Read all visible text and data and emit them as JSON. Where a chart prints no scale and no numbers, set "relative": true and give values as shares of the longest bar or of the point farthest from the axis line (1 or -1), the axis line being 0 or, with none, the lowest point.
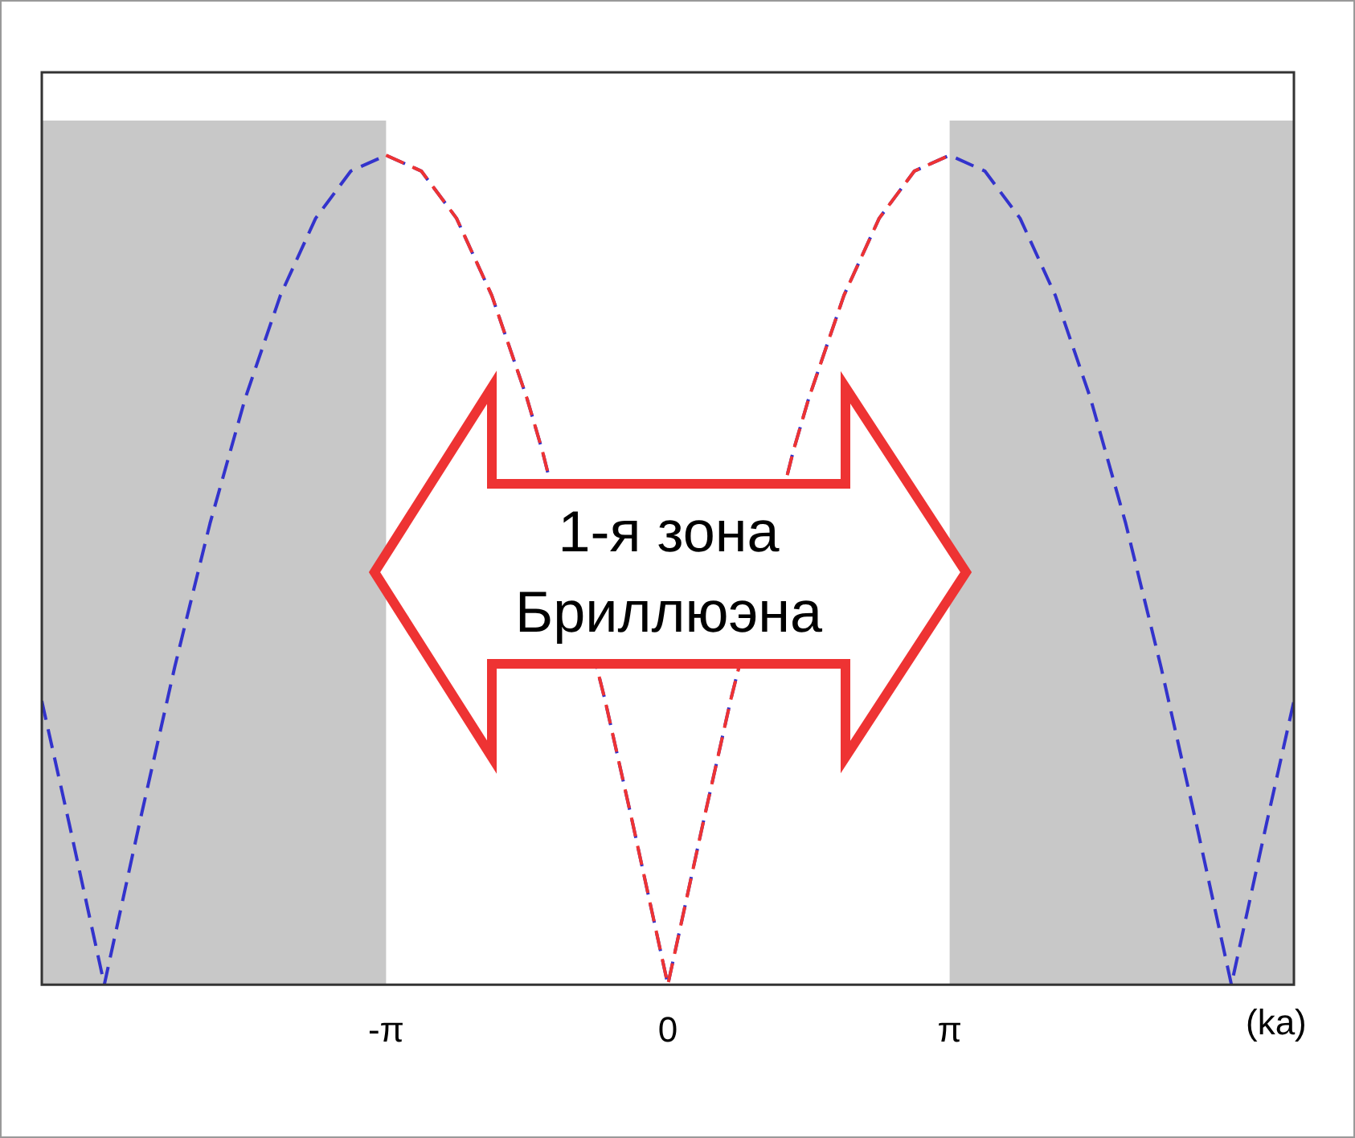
{
  "chart_data": {
    "type": "line",
    "relative": true,
    "xlabel": "(ka)",
    "annotations": [
      "1-я зона Бриллюэна"
    ],
    "xlim": [
      -6.98,
      6.98
    ],
    "xticks": [
      {
        "value": -3.1416,
        "label": "-π"
      },
      0,
      {
        "value": 3.1416,
        "label": "π"
      }
    ],
    "grid": false,
    "legend": false,
    "marker": "none",
    "bands": [
      {
        "axis": "x",
        "from": -6.98,
        "to": -3.1416,
        "color": "#c8c8c8"
      },
      {
        "axis": "x",
        "from": 3.1416,
        "to": 6.98,
        "color": "#c8c8c8"
      }
    ],
    "series": [
      {
        "color": "#3333cc",
        "line_style": "dashed",
        "x": [
          -6.98,
          -6.676,
          -6.283,
          -5.89,
          -5.498,
          -5.105,
          -4.712,
          -4.32,
          -3.927,
          -3.534,
          -3.142,
          -2.749,
          -2.356,
          -1.963,
          -1.571,
          -1.4,
          -0.7,
          -0.393,
          0,
          0.393,
          0.7,
          1.4,
          1.571,
          1.963,
          2.356,
          2.749,
          3.142,
          3.534,
          3.927,
          4.32,
          4.712,
          5.105,
          5.498,
          5.89,
          6.283,
          6.676,
          6.98
        ],
        "values": [
          0.342,
          0.195,
          0,
          0.195,
          0.383,
          0.556,
          0.707,
          0.831,
          0.924,
          0.981,
          1,
          0.981,
          0.924,
          0.831,
          0.707,
          0.644,
          0.343,
          0.195,
          0,
          0.195,
          0.343,
          0.644,
          0.707,
          0.831,
          0.924,
          0.981,
          1,
          0.981,
          0.924,
          0.831,
          0.707,
          0.556,
          0.383,
          0.195,
          0,
          0.195,
          0.342
        ]
      },
      {
        "color": "#ee3333",
        "line_style": "dashed",
        "x": [
          -3.142,
          -2.749,
          -2.356,
          -1.963,
          -1.571,
          -1.4,
          -0.7,
          -0.393,
          0,
          0.393,
          0.7,
          1.4,
          1.571,
          1.963,
          2.356,
          2.749,
          3.142
        ],
        "values": [
          1,
          0.981,
          0.924,
          0.831,
          0.707,
          0.644,
          0.343,
          0.195,
          0,
          0.195,
          0.343,
          0.644,
          0.707,
          0.831,
          0.924,
          0.981,
          1
        ]
      }
    ]
  }
}
